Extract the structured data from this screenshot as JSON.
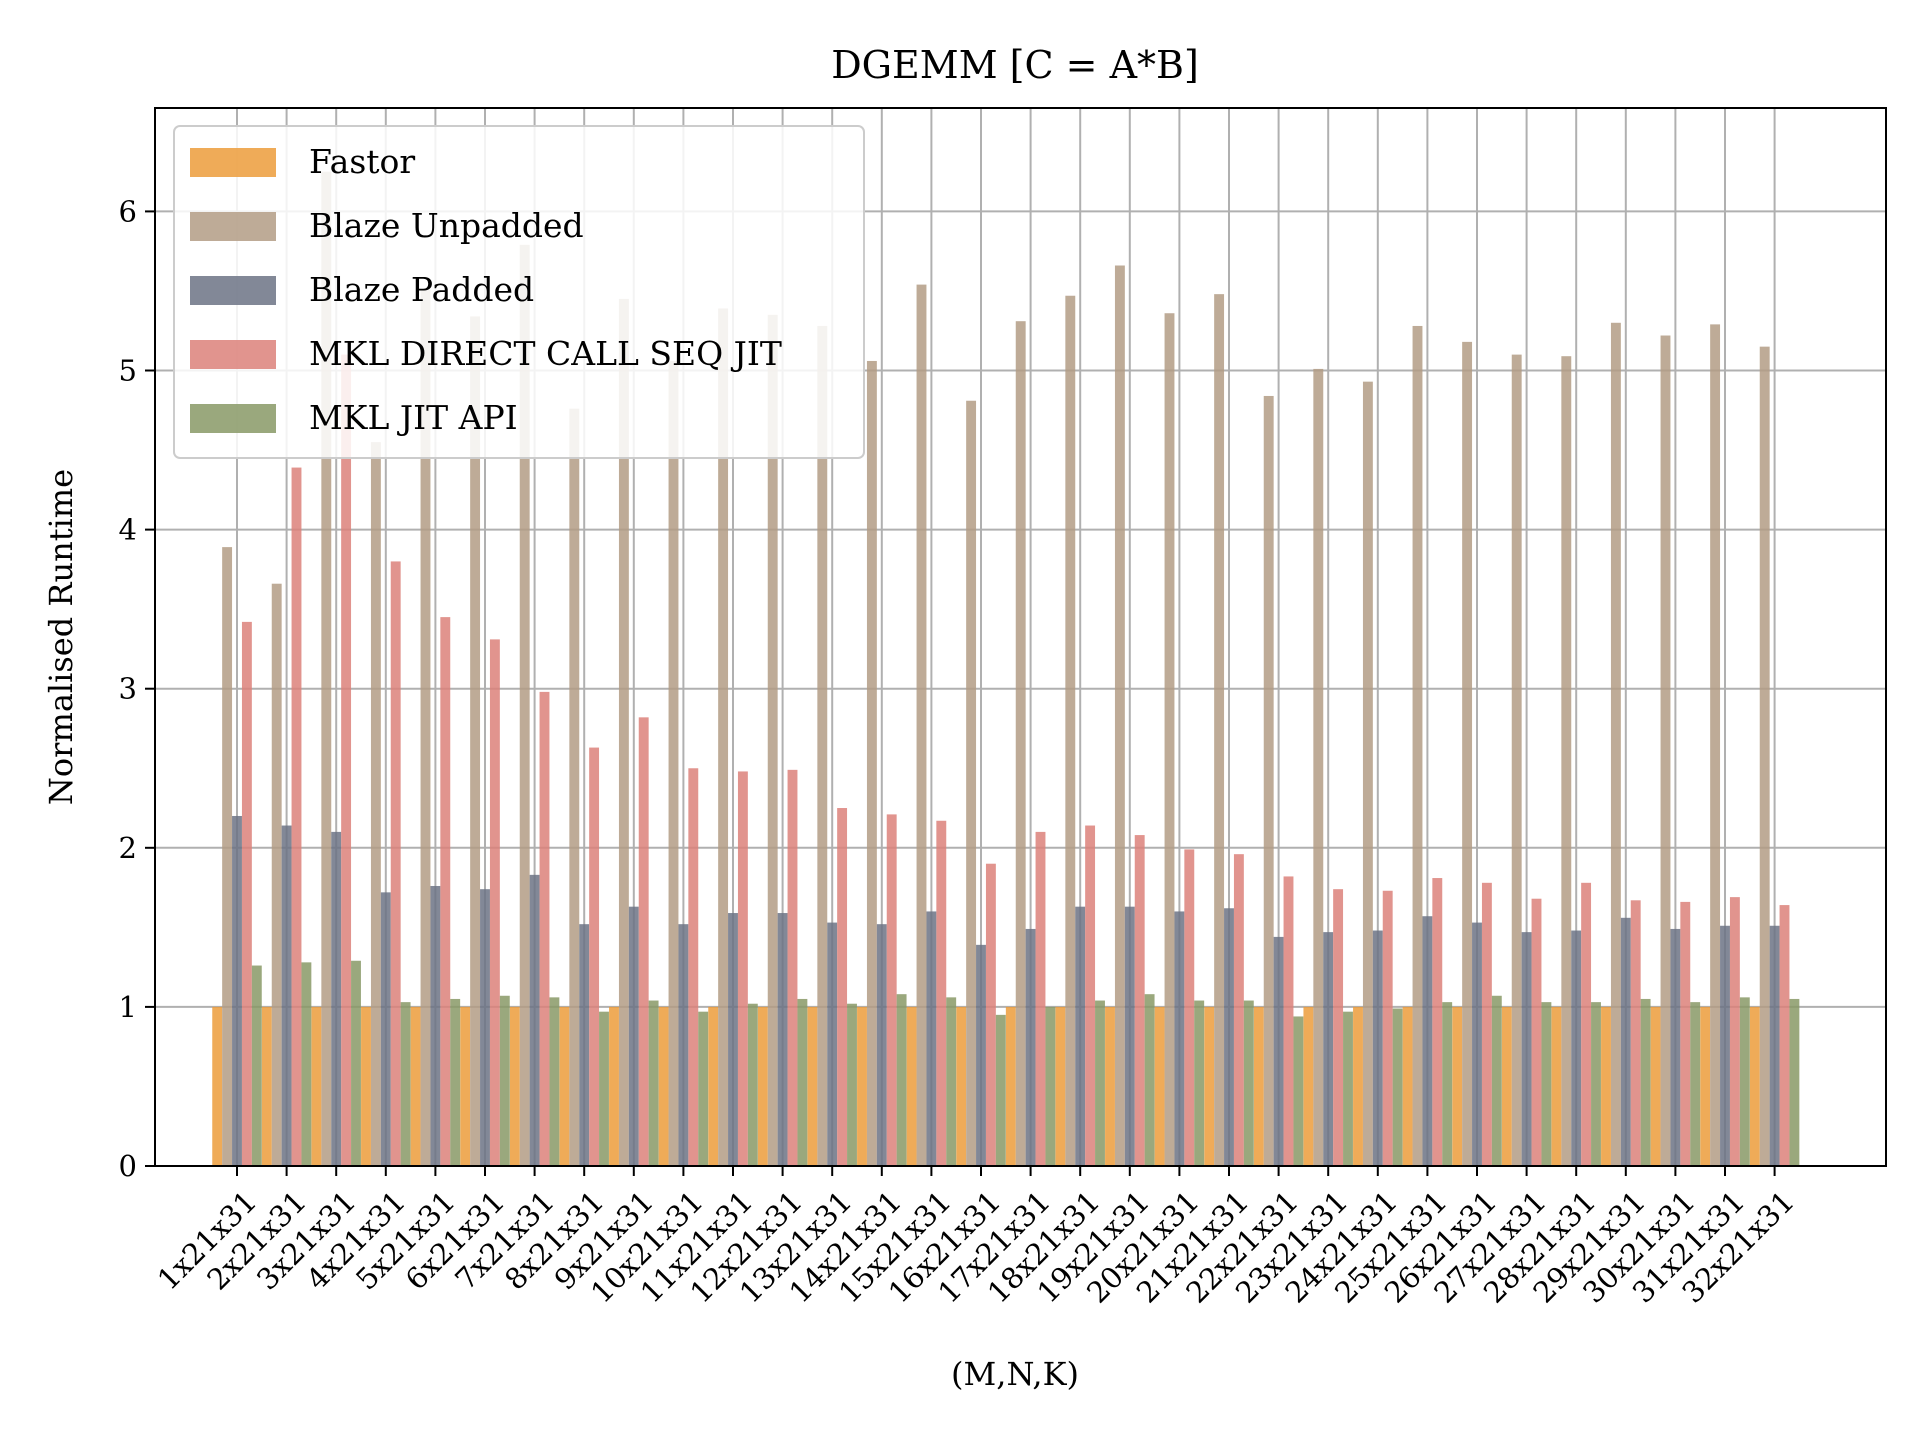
{
  "chart_data": {
    "type": "bar",
    "title": "DGEMM [C = A*B]",
    "xlabel": "(M,N,K)",
    "ylabel": "Normalised Runtime",
    "ylim": [
      0,
      6.65
    ],
    "yticks": [
      0,
      1,
      2,
      3,
      4,
      5,
      6
    ],
    "grid": true,
    "legend_position": "top-left",
    "categories": [
      "1x21x31",
      "2x21x31",
      "3x21x31",
      "4x21x31",
      "5x21x31",
      "6x21x31",
      "7x21x31",
      "8x21x31",
      "9x21x31",
      "10x21x31",
      "11x21x31",
      "12x21x31",
      "13x21x31",
      "14x21x31",
      "15x21x31",
      "16x21x31",
      "17x21x31",
      "18x21x31",
      "19x21x31",
      "20x21x31",
      "21x21x31",
      "22x21x31",
      "23x21x31",
      "24x21x31",
      "25x21x31",
      "26x21x31",
      "27x21x31",
      "28x21x31",
      "29x21x31",
      "30x21x31",
      "31x21x31",
      "32x21x31"
    ],
    "series": [
      {
        "name": "Fastor",
        "color": "#ec9c3b",
        "values": [
          1,
          1,
          1,
          1,
          1,
          1,
          1,
          1,
          1,
          1,
          1,
          1,
          1,
          1,
          1,
          1,
          1,
          1,
          1,
          1,
          1,
          1,
          1,
          1,
          1,
          1,
          1,
          1,
          1,
          1,
          1,
          1
        ]
      },
      {
        "name": "Blaze Unpadded",
        "color": "#b39c85",
        "values": [
          3.89,
          3.66,
          6.25,
          4.55,
          5.51,
          5.34,
          5.79,
          4.76,
          5.45,
          5.06,
          5.39,
          5.35,
          5.28,
          5.06,
          5.54,
          4.81,
          5.31,
          5.47,
          5.66,
          5.36,
          5.48,
          4.84,
          5.01,
          4.93,
          5.28,
          5.18,
          5.1,
          5.09,
          5.3,
          5.22,
          5.29,
          5.15
        ]
      },
      {
        "name": "Blaze Padded",
        "color": "#6c7385",
        "values": [
          2.2,
          2.14,
          2.1,
          1.72,
          1.76,
          1.74,
          1.83,
          1.52,
          1.63,
          1.52,
          1.59,
          1.59,
          1.53,
          1.52,
          1.6,
          1.39,
          1.49,
          1.63,
          1.63,
          1.6,
          1.62,
          1.44,
          1.47,
          1.48,
          1.57,
          1.53,
          1.47,
          1.48,
          1.56,
          1.49,
          1.51,
          1.51
        ]
      },
      {
        "name": "MKL DIRECT CALL SEQ JIT",
        "color": "#dc817a",
        "values": [
          3.42,
          4.39,
          5.1,
          3.8,
          3.45,
          3.31,
          2.98,
          2.63,
          2.82,
          2.5,
          2.48,
          2.49,
          2.25,
          2.21,
          2.17,
          1.9,
          2.1,
          2.14,
          2.08,
          1.99,
          1.96,
          1.82,
          1.74,
          1.73,
          1.81,
          1.78,
          1.68,
          1.78,
          1.67,
          1.66,
          1.69,
          1.64
        ]
      },
      {
        "name": "MKL JIT API",
        "color": "#889966",
        "values": [
          1.26,
          1.28,
          1.29,
          1.03,
          1.05,
          1.07,
          1.06,
          0.97,
          1.04,
          0.97,
          1.02,
          1.05,
          1.02,
          1.08,
          1.06,
          0.95,
          1.0,
          1.04,
          1.08,
          1.04,
          1.04,
          0.94,
          0.97,
          0.99,
          1.03,
          1.07,
          1.03,
          1.03,
          1.05,
          1.03,
          1.06,
          1.05
        ]
      }
    ]
  }
}
